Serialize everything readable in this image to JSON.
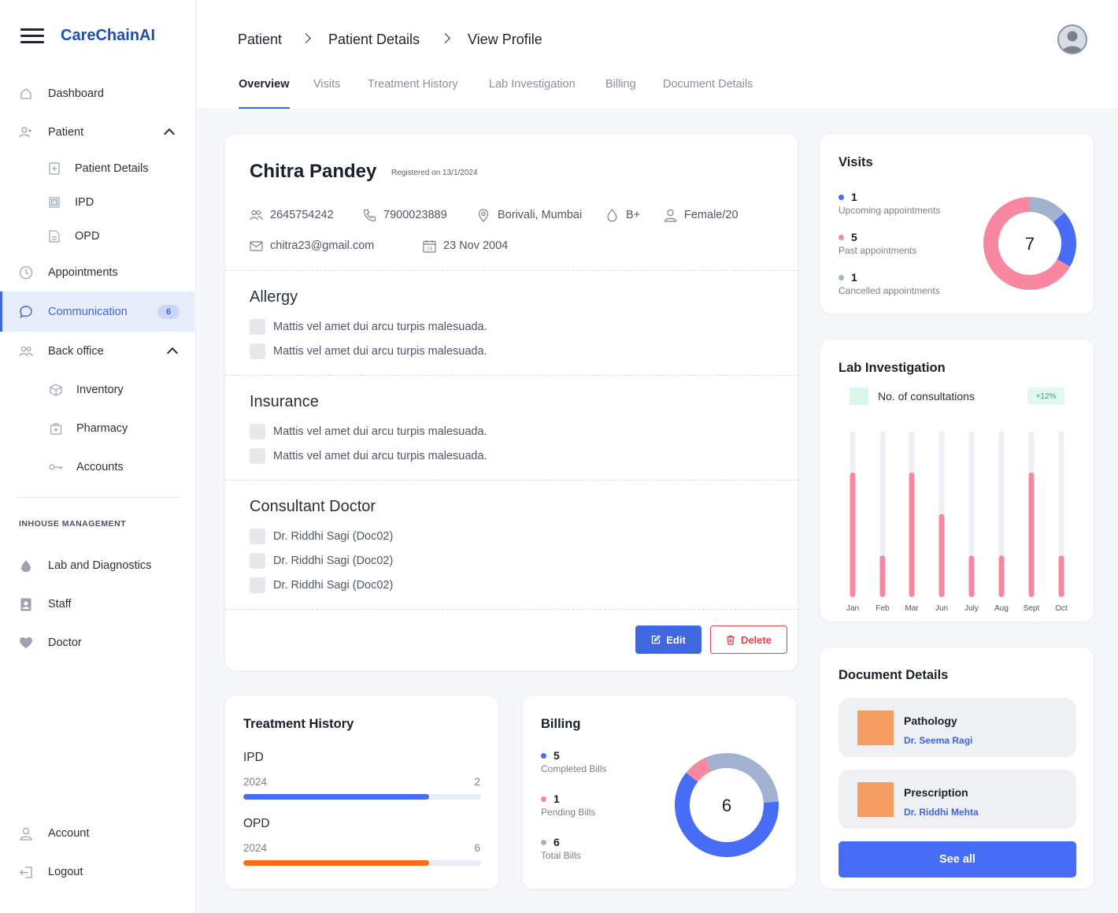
{
  "app": {
    "brand": "CareChainAI"
  },
  "sidebar": {
    "items": [
      {
        "label": "Dashboard"
      },
      {
        "label": "Patient"
      },
      {
        "label": "Patient Details"
      },
      {
        "label": "IPD"
      },
      {
        "label": "OPD"
      },
      {
        "label": "Appointments"
      },
      {
        "label": "Communication",
        "badge": "6"
      },
      {
        "label": "Back office"
      },
      {
        "label": "Inventory"
      },
      {
        "label": "Pharmacy"
      },
      {
        "label": "Accounts"
      }
    ],
    "section_label": "INHOUSE MANAGEMENT",
    "inhouse": [
      {
        "label": "Lab and Diagnostics"
      },
      {
        "label": "Staff"
      },
      {
        "label": "Doctor"
      }
    ],
    "bottom": [
      {
        "label": "Account"
      },
      {
        "label": "Logout"
      }
    ]
  },
  "breadcrumb": [
    "Patient",
    "Patient Details",
    "View Profile"
  ],
  "tabs": [
    "Overview",
    "Visits",
    "Treatment History",
    "Lab Investigation",
    "Billing",
    "Document Details"
  ],
  "patient": {
    "name": "Chitra Pandey",
    "registered": "Registered on 13/1/2024",
    "id": "2645754242",
    "phone": "7900023889",
    "location": "Borivali, Mumbai",
    "blood": "B+",
    "gender_age": "Female/20",
    "email": "chitra23@gmail.com",
    "dob": "23 Nov 2004",
    "calendar_day": "19"
  },
  "allergy": {
    "title": "Allergy",
    "items": [
      "Mattis vel amet dui arcu turpis malesuada.",
      "Mattis vel amet dui arcu turpis malesuada."
    ]
  },
  "insurance": {
    "title": "Insurance",
    "items": [
      "Mattis vel amet dui arcu turpis malesuada.",
      "Mattis vel amet dui arcu turpis malesuada."
    ]
  },
  "consultant": {
    "title": "Consultant Doctor",
    "items": [
      "Dr. Riddhi Sagi (Doc02)",
      "Dr. Riddhi Sagi (Doc02)",
      "Dr. Riddhi Sagi (Doc02)"
    ]
  },
  "actions": {
    "edit": "Edit",
    "delete": "Delete"
  },
  "visits": {
    "title": "Visits",
    "total": "7",
    "stats": [
      {
        "value": "1",
        "label": "Upcoming appointments",
        "color": "#476cf6"
      },
      {
        "value": "5",
        "label": "Past appointments",
        "color": "#f7889f"
      },
      {
        "value": "1",
        "label": "Cancelled appointments",
        "color": "#a3b1d0"
      }
    ]
  },
  "lab": {
    "title": "Lab Investigation",
    "legend": "No. of consultations",
    "trend": "+12%",
    "colors": {
      "bar": "#f7889f",
      "track": "#eef0f5",
      "legend": "#dcf6ea",
      "trend_bg": "#e3f8ee",
      "trend_text": "#3aa36f"
    }
  },
  "chart_data": {
    "type": "bar",
    "categories": [
      "Jan",
      "Feb",
      "Mar",
      "Jun",
      "July",
      "Aug",
      "Sept",
      "Oct"
    ],
    "series": [
      {
        "name": "No. of consultations",
        "values": [
          3,
          1,
          3,
          2,
          1,
          1,
          3,
          1
        ]
      }
    ],
    "ylim": [
      0,
      4
    ]
  },
  "treatment": {
    "title": "Treatment History",
    "rows": [
      {
        "label": "IPD",
        "year": "2024",
        "count": "2",
        "progress": 0.78,
        "color": "#476cf6"
      },
      {
        "label": "OPD",
        "year": "2024",
        "count": "6",
        "progress": 0.78,
        "color": "#ff6a12"
      }
    ]
  },
  "billing": {
    "title": "Billing",
    "total": "6",
    "stats": [
      {
        "value": "5",
        "label": "Completed Bills",
        "color": "#476cf6"
      },
      {
        "value": "1",
        "label": "Pending Bills",
        "color": "#f7889f"
      },
      {
        "value": "6",
        "label": "Total Bills",
        "color": "#a3b1d0"
      }
    ]
  },
  "documents": {
    "title": "Document Details",
    "items": [
      {
        "title": "Pathology",
        "doctor": "Dr. Seema Ragi"
      },
      {
        "title": "Prescription",
        "doctor": "Dr. Riddhi Mehta"
      }
    ],
    "see_all": "See all"
  },
  "colors": {
    "accent": "#3f67e0",
    "brand": "#1e4fb3",
    "danger": "#e2404a",
    "doc_thumb": "#f59c63"
  }
}
